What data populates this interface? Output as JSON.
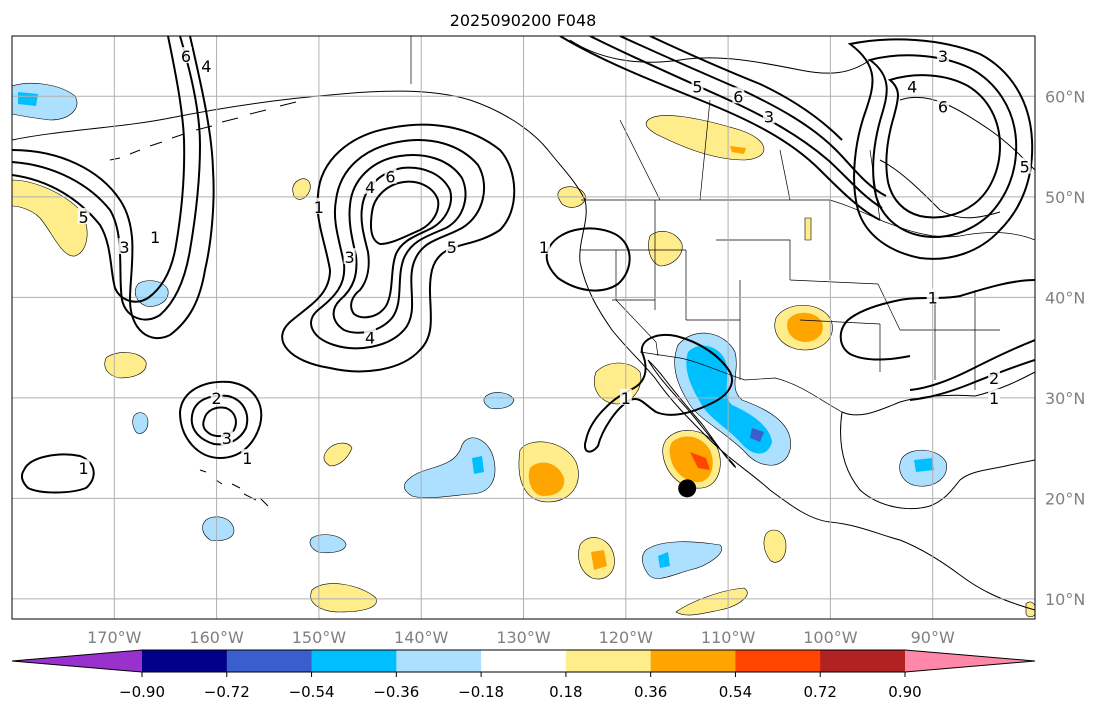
{
  "title": "2025090200 F048",
  "map": {
    "lon_range": [
      -180,
      -80
    ],
    "lat_range": [
      8,
      66
    ],
    "lon_ticks": [
      {
        "value": -170,
        "label": "170°W"
      },
      {
        "value": -160,
        "label": "160°W"
      },
      {
        "value": -150,
        "label": "150°W"
      },
      {
        "value": -140,
        "label": "140°W"
      },
      {
        "value": -130,
        "label": "130°W"
      },
      {
        "value": -120,
        "label": "120°W"
      },
      {
        "value": -110,
        "label": "110°W"
      },
      {
        "value": -100,
        "label": "100°W"
      },
      {
        "value": -90,
        "label": "90°W"
      }
    ],
    "lat_ticks": [
      {
        "value": 10,
        "label": "10°N"
      },
      {
        "value": 20,
        "label": "20°N"
      },
      {
        "value": 30,
        "label": "30°N"
      },
      {
        "value": 40,
        "label": "40°N"
      },
      {
        "value": 50,
        "label": "50°N"
      },
      {
        "value": 60,
        "label": "60°N"
      }
    ],
    "grid": true,
    "colors": {
      "grid": "#b0b0b0",
      "coast": "#000000",
      "tick_label": "#808080",
      "contour": "#000000",
      "marker": "#000000"
    },
    "marker": {
      "lon": -114,
      "lat": 21
    }
  },
  "contours": [
    {
      "label": "6",
      "lon": -143,
      "lat": 52
    },
    {
      "label": "4",
      "lon": -145,
      "lat": 51
    },
    {
      "label": "3",
      "lon": -147,
      "lat": 44
    },
    {
      "label": "1",
      "lon": -150,
      "lat": 49
    },
    {
      "label": "5",
      "lon": -137,
      "lat": 45
    },
    {
      "label": "4",
      "lon": -145,
      "lat": 36
    },
    {
      "label": "5",
      "lon": -173,
      "lat": 48
    },
    {
      "label": "3",
      "lon": -169,
      "lat": 45
    },
    {
      "label": "1",
      "lon": -166,
      "lat": 46
    },
    {
      "label": "6",
      "lon": -163,
      "lat": 64
    },
    {
      "label": "4",
      "lon": -161,
      "lat": 63
    },
    {
      "label": "2",
      "lon": -160,
      "lat": 30
    },
    {
      "label": "3",
      "lon": -159,
      "lat": 26
    },
    {
      "label": "1",
      "lon": -157,
      "lat": 24
    },
    {
      "label": "1",
      "lon": -173,
      "lat": 23
    },
    {
      "label": "1",
      "lon": -128,
      "lat": 45
    },
    {
      "label": "1",
      "lon": -120,
      "lat": 30
    },
    {
      "label": "5",
      "lon": -113,
      "lat": 61
    },
    {
      "label": "6",
      "lon": -109,
      "lat": 60
    },
    {
      "label": "3",
      "lon": -106,
      "lat": 58
    },
    {
      "label": "3",
      "lon": -89,
      "lat": 64
    },
    {
      "label": "4",
      "lon": -92,
      "lat": 61
    },
    {
      "label": "6",
      "lon": -89,
      "lat": 59
    },
    {
      "label": "5",
      "lon": -81,
      "lat": 53
    },
    {
      "label": "1",
      "lon": -90,
      "lat": 40
    },
    {
      "label": "2",
      "lon": -84,
      "lat": 32
    },
    {
      "label": "1",
      "lon": -84,
      "lat": 30
    }
  ],
  "colorbar": {
    "labels": [
      "−0.90",
      "−0.72",
      "−0.54",
      "−0.36",
      "−0.18",
      "0.18",
      "0.36",
      "0.54",
      "0.72",
      "0.90"
    ],
    "colors": [
      "#9932CC",
      "#00008B",
      "#3A5FCD",
      "#00BFFF",
      "#ADDFFF",
      "#FFFFFF",
      "#FFEC8B",
      "#FFA500",
      "#FF4500",
      "#B22222",
      "#FF88A8"
    ]
  }
}
